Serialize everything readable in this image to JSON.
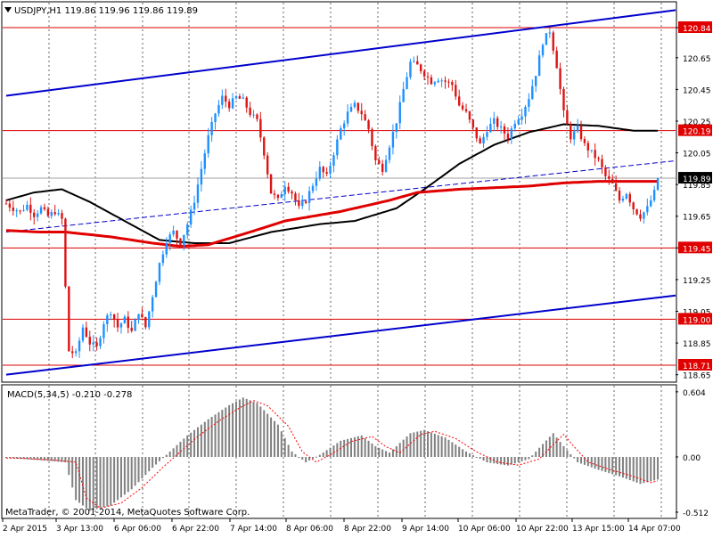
{
  "window": {
    "symbol_header": "USDJPY,H1  119.86 119.96 119.86 119.89",
    "watermark": "MetaTrader, © 2001-2014, MetaQuotes Software Corp.",
    "menu_icon": "triangle-down-icon"
  },
  "colors": {
    "background": "#ffffff",
    "grid": "#000000",
    "bull_candle": "#1e90ff",
    "bear_candle": "#dc1414",
    "ma_red": "#e00000",
    "ma_black": "#000000",
    "channel_blue": "#0000cc",
    "level_line": "#dc0000",
    "level_label_bg": "#e00000",
    "current_price_bg": "#000000",
    "macd_hist": "#808080",
    "macd_signal": "#ff0000"
  },
  "chart_data": [
    {
      "type": "candlestick",
      "title": "USDJPY,H1",
      "ohlc_last": {
        "open": 119.86,
        "high": 119.96,
        "low": 119.86,
        "close": 119.89
      },
      "ylim": [
        118.6,
        121.0
      ],
      "y_ticks": [
        "120.84",
        "120.65",
        "120.45",
        "120.25",
        "120.05",
        "119.85",
        "119.65",
        "119.45",
        "119.25",
        "119.05",
        "118.85",
        "118.65"
      ],
      "x_ticks": [
        "2 Apr 2015",
        "3 Apr 13:00",
        "6 Apr 06:00",
        "6 Apr 22:00",
        "7 Apr 14:00",
        "8 Apr 06:00",
        "8 Apr 22:00",
        "9 Apr 14:00",
        "10 Apr 06:00",
        "10 Apr 22:00",
        "13 Apr 15:00",
        "14 Apr 07:00"
      ],
      "levels": [
        "120.84",
        "120.19",
        "119.45",
        "119.00",
        "118.71"
      ],
      "current_price": "119.89",
      "price_path": [
        [
          0,
          119.73
        ],
        [
          2,
          119.7
        ],
        [
          4,
          119.68
        ],
        [
          6,
          119.72
        ],
        [
          8,
          119.66
        ],
        [
          10,
          119.7
        ],
        [
          12,
          119.65
        ],
        [
          14,
          119.68
        ],
        [
          16,
          119.63
        ],
        [
          17,
          119.2
        ],
        [
          18,
          118.8
        ],
        [
          20,
          118.78
        ],
        [
          22,
          118.95
        ],
        [
          24,
          118.85
        ],
        [
          26,
          118.82
        ],
        [
          28,
          118.98
        ],
        [
          30,
          119.05
        ],
        [
          32,
          118.95
        ],
        [
          34,
          119.0
        ],
        [
          36,
          118.92
        ],
        [
          38,
          119.05
        ],
        [
          40,
          118.95
        ],
        [
          42,
          119.15
        ],
        [
          44,
          119.35
        ],
        [
          46,
          119.5
        ],
        [
          48,
          119.55
        ],
        [
          50,
          119.48
        ],
        [
          52,
          119.6
        ],
        [
          54,
          119.75
        ],
        [
          56,
          119.95
        ],
        [
          58,
          120.15
        ],
        [
          60,
          120.3
        ],
        [
          62,
          120.4
        ],
        [
          64,
          120.35
        ],
        [
          66,
          120.4
        ],
        [
          68,
          120.38
        ],
        [
          70,
          120.3
        ],
        [
          72,
          120.25
        ],
        [
          74,
          120.05
        ],
        [
          76,
          119.8
        ],
        [
          78,
          119.75
        ],
        [
          80,
          119.85
        ],
        [
          82,
          119.8
        ],
        [
          84,
          119.7
        ],
        [
          86,
          119.75
        ],
        [
          88,
          119.85
        ],
        [
          90,
          119.95
        ],
        [
          92,
          119.9
        ],
        [
          94,
          120.05
        ],
        [
          96,
          120.2
        ],
        [
          98,
          120.3
        ],
        [
          100,
          120.35
        ],
        [
          102,
          120.3
        ],
        [
          104,
          120.2
        ],
        [
          106,
          120.0
        ],
        [
          108,
          119.95
        ],
        [
          110,
          120.1
        ],
        [
          112,
          120.25
        ],
        [
          114,
          120.45
        ],
        [
          116,
          120.62
        ],
        [
          118,
          120.6
        ],
        [
          120,
          120.55
        ],
        [
          122,
          120.5
        ],
        [
          124,
          120.52
        ],
        [
          126,
          120.5
        ],
        [
          128,
          120.48
        ],
        [
          130,
          120.35
        ],
        [
          132,
          120.3
        ],
        [
          134,
          120.2
        ],
        [
          136,
          120.1
        ],
        [
          138,
          120.2
        ],
        [
          140,
          120.25
        ],
        [
          142,
          120.2
        ],
        [
          144,
          120.15
        ],
        [
          146,
          120.25
        ],
        [
          148,
          120.3
        ],
        [
          150,
          120.4
        ],
        [
          152,
          120.55
        ],
        [
          154,
          120.75
        ],
        [
          156,
          120.82
        ],
        [
          158,
          120.6
        ],
        [
          160,
          120.3
        ],
        [
          162,
          120.15
        ],
        [
          164,
          120.2
        ],
        [
          166,
          120.1
        ],
        [
          168,
          120.05
        ],
        [
          170,
          120.0
        ],
        [
          172,
          119.9
        ],
        [
          174,
          119.85
        ],
        [
          176,
          119.75
        ],
        [
          178,
          119.8
        ],
        [
          180,
          119.7
        ],
        [
          182,
          119.65
        ],
        [
          184,
          119.7
        ],
        [
          186,
          119.8
        ],
        [
          187,
          119.89
        ]
      ],
      "ma_red": [
        [
          0,
          119.56
        ],
        [
          10,
          119.55
        ],
        [
          17,
          119.55
        ],
        [
          30,
          119.52
        ],
        [
          42,
          119.48
        ],
        [
          50,
          119.46
        ],
        [
          58,
          119.47
        ],
        [
          70,
          119.55
        ],
        [
          80,
          119.62
        ],
        [
          96,
          119.68
        ],
        [
          110,
          119.75
        ],
        [
          118,
          119.8
        ],
        [
          130,
          119.82
        ],
        [
          150,
          119.84
        ],
        [
          160,
          119.86
        ],
        [
          170,
          119.87
        ],
        [
          187,
          119.87
        ]
      ],
      "ma_black": [
        [
          0,
          119.75
        ],
        [
          8,
          119.8
        ],
        [
          16,
          119.82
        ],
        [
          24,
          119.74
        ],
        [
          34,
          119.62
        ],
        [
          44,
          119.5
        ],
        [
          54,
          119.48
        ],
        [
          64,
          119.48
        ],
        [
          76,
          119.55
        ],
        [
          90,
          119.6
        ],
        [
          100,
          119.62
        ],
        [
          112,
          119.7
        ],
        [
          120,
          119.82
        ],
        [
          130,
          119.98
        ],
        [
          140,
          120.1
        ],
        [
          150,
          120.18
        ],
        [
          160,
          120.23
        ],
        [
          170,
          120.22
        ],
        [
          180,
          120.19
        ],
        [
          187,
          120.19
        ]
      ],
      "channel_upper": [
        [
          0,
          120.41
        ],
        [
          187,
          120.95
        ]
      ],
      "channel_lower": [
        [
          0,
          118.65
        ],
        [
          187,
          119.15
        ]
      ],
      "midline": [
        [
          0,
          119.55
        ],
        [
          187,
          120.0
        ]
      ]
    },
    {
      "type": "histogram",
      "title": "MACD(5,34,5)",
      "header": "MACD(5,34,5) -0.210 -0.278",
      "y_ticks": [
        "0.604",
        "0.00",
        "-0.512"
      ],
      "ylim": [
        -0.512,
        0.604
      ],
      "main_last": -0.21,
      "signal_last": -0.278
    }
  ]
}
